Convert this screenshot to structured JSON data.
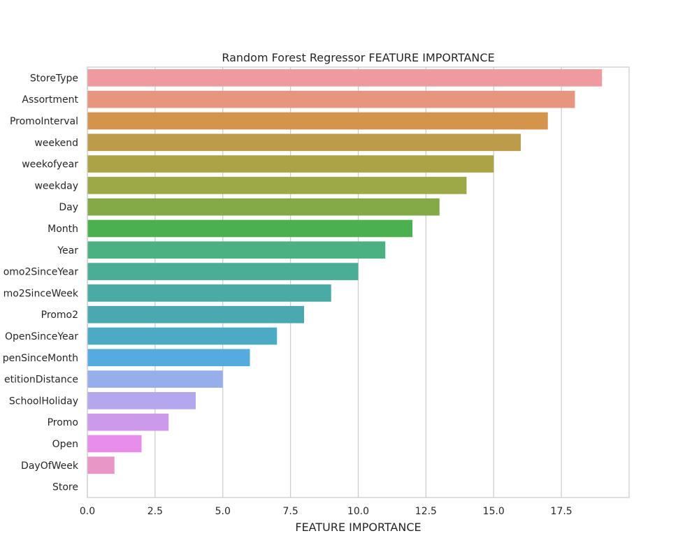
{
  "chart_data": {
    "type": "bar",
    "orientation": "horizontal",
    "title": "Random Forest Regressor FEATURE IMPORTANCE",
    "xlabel": "FEATURE IMPORTANCE",
    "ylabel": "",
    "xlim": [
      0,
      20
    ],
    "x_ticks": [
      "0.0",
      "2.5",
      "5.0",
      "7.5",
      "10.0",
      "12.5",
      "15.0",
      "17.5"
    ],
    "x_tick_values": [
      0,
      2.5,
      5,
      7.5,
      10,
      12.5,
      15,
      17.5
    ],
    "grid": "vertical",
    "categories": [
      "StoreType",
      "Assortment",
      "PromoInterval",
      "weekend",
      "weekofyear",
      "weekday",
      "Day",
      "Month",
      "Year",
      "omo2SinceYear",
      "mo2SinceWeek",
      "Promo2",
      "OpenSinceYear",
      "penSinceMonth",
      "etitionDistance",
      "SchoolHoliday",
      "Promo",
      "Open",
      "DayOfWeek",
      "Store"
    ],
    "values": [
      19,
      18,
      17,
      16,
      15,
      14,
      13,
      12,
      11,
      10,
      9,
      8,
      7,
      6,
      5,
      4,
      3,
      2,
      1,
      0
    ],
    "colors": [
      "#ef9a9f",
      "#e8957f",
      "#d5944b",
      "#bb9c4b",
      "#aca346",
      "#9da946",
      "#84aa48",
      "#4bb14f",
      "#4bb082",
      "#4aad95",
      "#4aaaa4",
      "#4aa8b0",
      "#4caac5",
      "#55abdd",
      "#96aeea",
      "#b5a7ed",
      "#cd9aeb",
      "#e88de9",
      "#e896c6",
      "#ef95aa"
    ]
  }
}
